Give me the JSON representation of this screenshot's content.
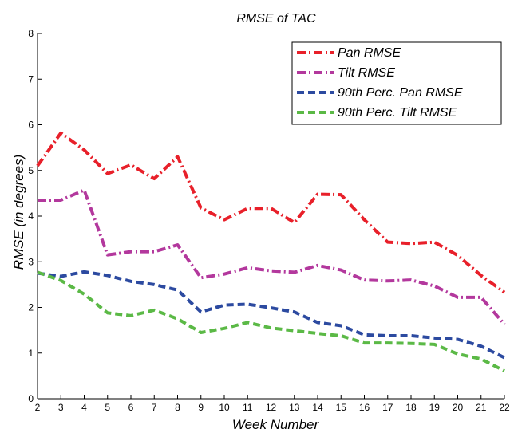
{
  "chart_data": {
    "type": "line",
    "title": "RMSE of TAC",
    "xlabel": "Week Number",
    "ylabel": "RMSE (in degrees)",
    "xlim": [
      2,
      22
    ],
    "ylim": [
      0,
      8
    ],
    "xticks": [
      2,
      3,
      4,
      5,
      6,
      7,
      8,
      9,
      10,
      11,
      12,
      13,
      14,
      15,
      16,
      17,
      18,
      19,
      20,
      21,
      22
    ],
    "yticks": [
      0,
      1,
      2,
      3,
      4,
      5,
      6,
      7,
      8
    ],
    "grid": false,
    "legend_position": "top-right",
    "x": [
      2,
      3,
      4,
      5,
      6,
      7,
      8,
      9,
      10,
      11,
      12,
      13,
      14,
      15,
      16,
      17,
      18,
      19,
      20,
      21,
      22
    ],
    "series": [
      {
        "name": "Pan RMSE",
        "color": "#e8202a",
        "dash": "dash-dot",
        "values": [
          5.1,
          5.82,
          5.45,
          4.93,
          5.12,
          4.82,
          5.3,
          4.18,
          3.92,
          4.17,
          4.17,
          3.86,
          4.48,
          4.47,
          3.92,
          3.43,
          3.4,
          3.43,
          3.14,
          2.7,
          2.33
        ]
      },
      {
        "name": "Tilt RMSE",
        "color": "#b3389d",
        "dash": "dash-dot",
        "values": [
          4.35,
          4.35,
          4.57,
          3.15,
          3.22,
          3.22,
          3.37,
          2.65,
          2.73,
          2.87,
          2.8,
          2.77,
          2.92,
          2.82,
          2.6,
          2.58,
          2.6,
          2.47,
          2.22,
          2.22,
          1.63
        ]
      },
      {
        "name": "90th Perc. Pan RMSE",
        "color": "#2c4aa0",
        "dash": "dashed",
        "values": [
          2.75,
          2.68,
          2.78,
          2.7,
          2.57,
          2.5,
          2.38,
          1.9,
          2.05,
          2.07,
          1.99,
          1.9,
          1.67,
          1.6,
          1.4,
          1.38,
          1.38,
          1.33,
          1.3,
          1.15,
          0.9
        ]
      },
      {
        "name": "90th Perc. Tilt RMSE",
        "color": "#5bb946",
        "dash": "dashed",
        "values": [
          2.77,
          2.59,
          2.29,
          1.88,
          1.82,
          1.94,
          1.75,
          1.45,
          1.54,
          1.67,
          1.55,
          1.49,
          1.43,
          1.38,
          1.22,
          1.22,
          1.21,
          1.19,
          0.98,
          0.87,
          0.61
        ]
      }
    ]
  }
}
